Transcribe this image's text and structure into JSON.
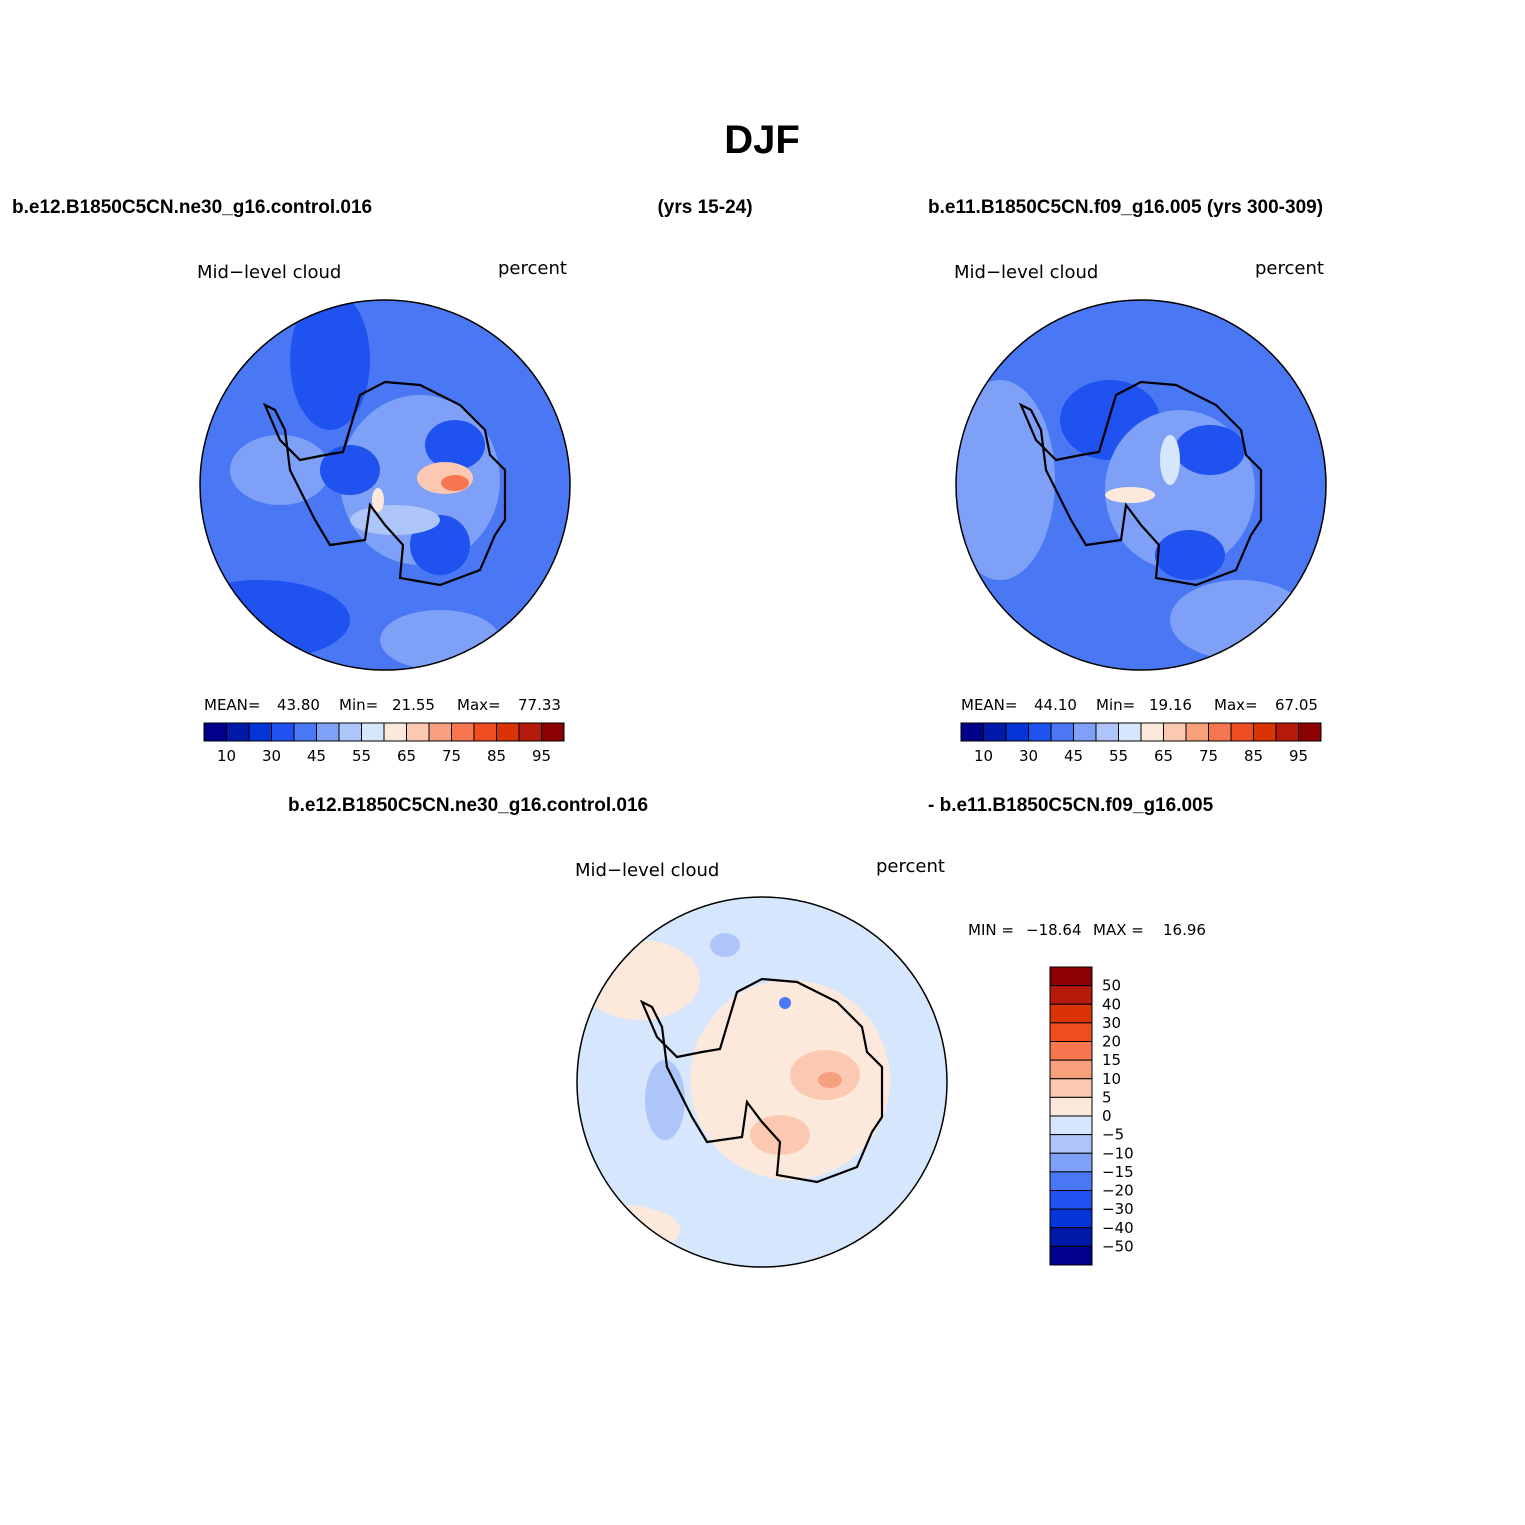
{
  "title": "DJF",
  "header": {
    "case1": "b.e12.B1850C5CN.ne30_g16.control.016",
    "years1": "(yrs 15-24)",
    "case2": "b.e11.B1850C5CN.f09_g16.005 (yrs 300-309)"
  },
  "panels": [
    {
      "variable": "Mid−level cloud",
      "units": "percent",
      "stats": [
        "MEAN=",
        "43.80",
        "Min=",
        "21.55",
        "Max=",
        "77.33"
      ]
    },
    {
      "variable": "Mid−level cloud",
      "units": "percent",
      "stats": [
        "MEAN=",
        "44.10",
        "Min=",
        "19.16",
        "Max=",
        "67.05"
      ]
    }
  ],
  "colorbar": {
    "labels": [
      "10",
      "30",
      "45",
      "55",
      "65",
      "75",
      "85",
      "95"
    ],
    "colors": [
      "#00008b",
      "#0019a8",
      "#0535d6",
      "#1f52ee",
      "#4a78f5",
      "#7fa0f7",
      "#aec5f9",
      "#d6e6fc",
      "#fde9dc",
      "#fbc9b1",
      "#f8a07e",
      "#f6764f",
      "#f04d1f",
      "#d93306",
      "#b51a0b",
      "#8b0000"
    ]
  },
  "difference": {
    "case1": "b.e12.B1850C5CN.ne30_g16.control.016",
    "case2": "- b.e11.B1850C5CN.f09_g16.005",
    "variable": "Mid−level cloud",
    "units": "percent",
    "stats": [
      "MIN =",
      "−18.64",
      "MAX =",
      "16.96"
    ],
    "colorbar": {
      "labels": [
        "50",
        "40",
        "30",
        "20",
        "15",
        "10",
        "5",
        "0",
        "−5",
        "−10",
        "−15",
        "−20",
        "−30",
        "−40",
        "−50"
      ],
      "colors": [
        "#8b0000",
        "#b51a0b",
        "#d93306",
        "#f04d1f",
        "#f6764f",
        "#f8a07e",
        "#fbc9b1",
        "#fde9dc",
        "#d6e6fc",
        "#aec5f9",
        "#7fa0f7",
        "#4a78f5",
        "#1f52ee",
        "#0535d6",
        "#0019a8",
        "#00008b"
      ]
    }
  }
}
